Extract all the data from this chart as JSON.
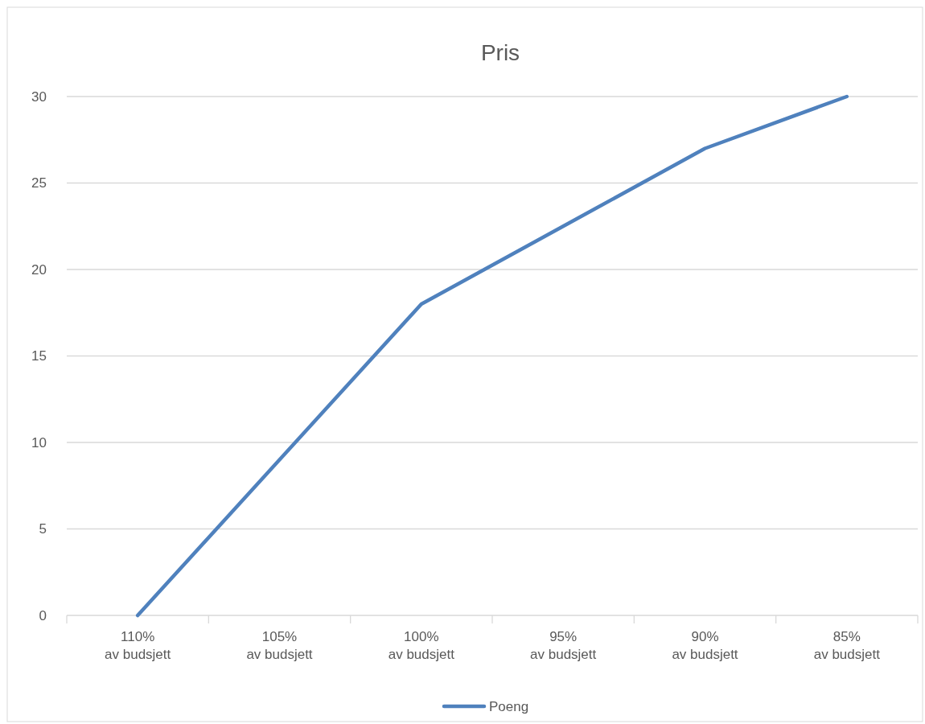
{
  "chart_data": {
    "type": "line",
    "title": "Pris",
    "categories": [
      "110% av budsjett",
      "105% av budsjett",
      "100% av budsjett",
      "95% av budsjett",
      "90% av budsjett",
      "85% av budsjett"
    ],
    "series": [
      {
        "name": "Poeng",
        "color": "#4f81bd",
        "values": [
          0,
          9,
          18,
          22.5,
          27,
          30
        ]
      }
    ],
    "ylim": [
      0,
      30
    ],
    "yticks": [
      0,
      5,
      10,
      15,
      20,
      25,
      30
    ],
    "grid": "y",
    "legend": "bottom",
    "marker": "none",
    "line_style": "solid"
  }
}
